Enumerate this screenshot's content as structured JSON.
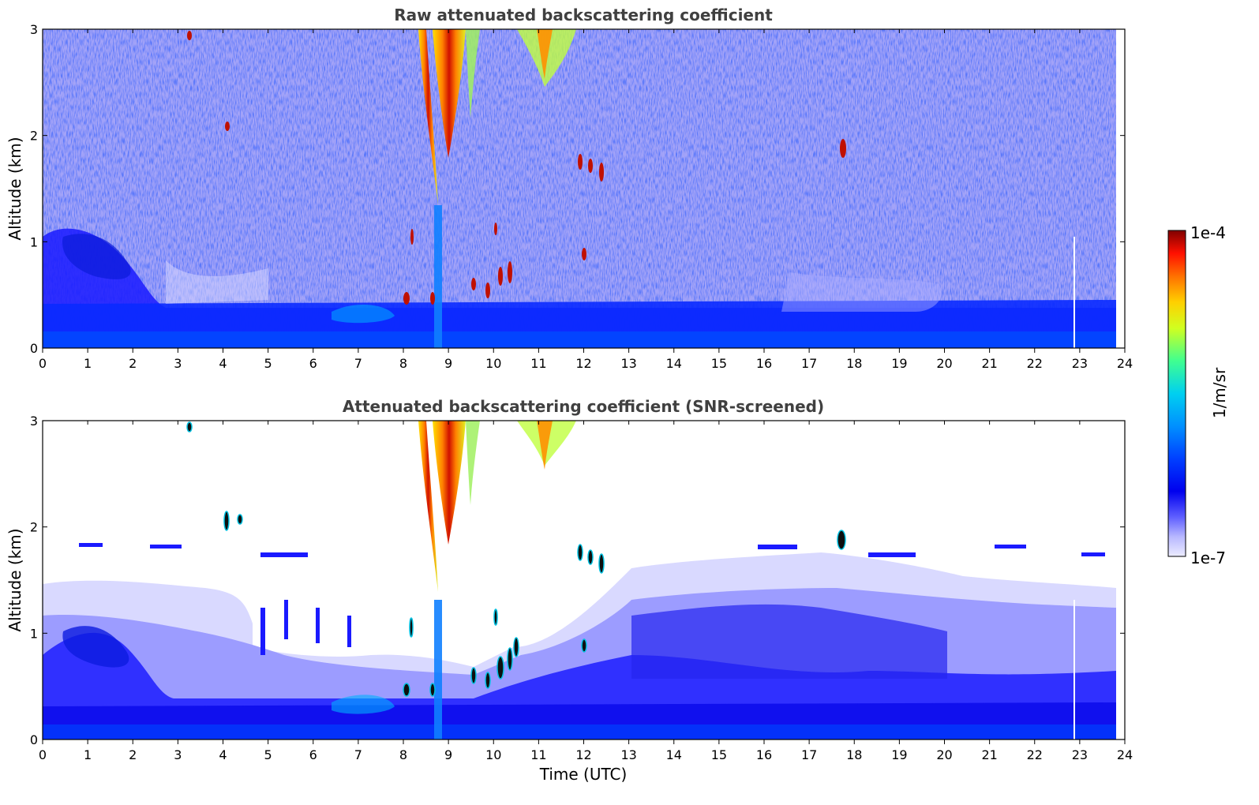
{
  "chart_data": [
    {
      "type": "heatmap",
      "title": "Raw attenuated backscattering coefficient",
      "xlabel": "",
      "ylabel": "Altitude (km)",
      "xlim": [
        0,
        24
      ],
      "ylim": [
        0,
        3
      ],
      "xticks": [
        "0",
        "1",
        "2",
        "3",
        "4",
        "5",
        "6",
        "7",
        "8",
        "9",
        "10",
        "11",
        "12",
        "13",
        "14",
        "15",
        "16",
        "17",
        "18",
        "19",
        "20",
        "21",
        "22",
        "23",
        "24"
      ],
      "yticks": [
        "0",
        "1",
        "2",
        "3"
      ],
      "grid": false,
      "screened": false
    },
    {
      "type": "heatmap",
      "title": "Attenuated backscattering coefficient (SNR-screened)",
      "xlabel": "Time (UTC)",
      "ylabel": "Altitude (km)",
      "xlim": [
        0,
        24
      ],
      "ylim": [
        0,
        3
      ],
      "xticks": [
        "0",
        "1",
        "2",
        "3",
        "4",
        "5",
        "6",
        "7",
        "8",
        "9",
        "10",
        "11",
        "12",
        "13",
        "14",
        "15",
        "16",
        "17",
        "18",
        "19",
        "20",
        "21",
        "22",
        "23",
        "24"
      ],
      "yticks": [
        "0",
        "1",
        "2",
        "3"
      ],
      "grid": false,
      "screened": true
    }
  ],
  "colorbar": {
    "label": "1/m/sr",
    "max_label": "1e-4",
    "min_label": "1e-7",
    "scale": "log",
    "colors": [
      "#ececff",
      "#b8b8ff",
      "#7070ff",
      "#2a2aff",
      "#0000ee",
      "#0050ff",
      "#00a8ff",
      "#00e0e0",
      "#40ff90",
      "#c0ff20",
      "#ffe000",
      "#ff8000",
      "#ff2000",
      "#d00000",
      "#800000"
    ]
  }
}
